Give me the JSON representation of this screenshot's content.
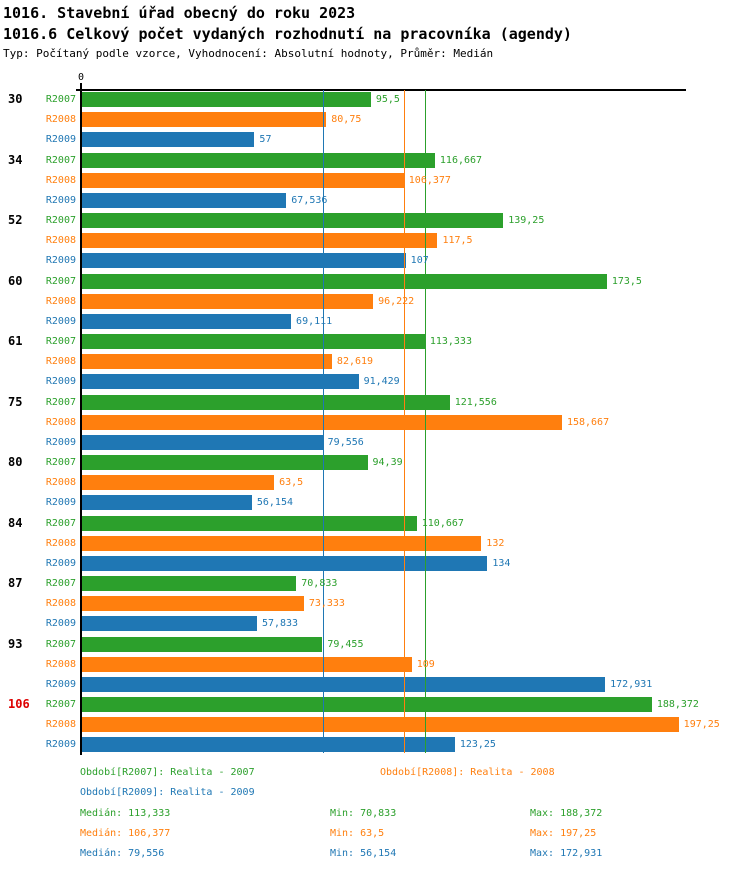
{
  "header": {
    "title": "1016. Stavební úřad obecný do roku 2023",
    "subtitle": "1016.6 Celkový počet vydaných rozhodnutí na pracovníka (agendy)",
    "meta": "Typ: Počítaný podle vzorce, Vyhodnocení: Absolutní hodnoty, Průměr: Medián"
  },
  "colors": {
    "r2007": "#2ca02c",
    "r2008": "#ff7f0e",
    "r2009": "#1f77b4",
    "highlight_label": "#dd0000",
    "axis": "#000000"
  },
  "axis": {
    "origin_label": "0",
    "xmin": 0,
    "xmax": 200
  },
  "chart_data": {
    "type": "bar",
    "orientation": "horizontal",
    "title": "1016.6 Celkový počet vydaných rozhodnutí na pracovníka (agendy)",
    "xlim": [
      0,
      200
    ],
    "grid": false,
    "series_labels": [
      "R2007",
      "R2008",
      "R2009"
    ],
    "groups": [
      {
        "label": "30",
        "highlight": false,
        "values": [
          95.5,
          80.75,
          57
        ],
        "display": [
          "95,5",
          "80,75",
          "57"
        ]
      },
      {
        "label": "34",
        "highlight": false,
        "values": [
          116.667,
          106.377,
          67.536
        ],
        "display": [
          "116,667",
          "106,377",
          "67,536"
        ]
      },
      {
        "label": "52",
        "highlight": false,
        "values": [
          139.25,
          117.5,
          107
        ],
        "display": [
          "139,25",
          "117,5",
          "107"
        ]
      },
      {
        "label": "60",
        "highlight": false,
        "values": [
          173.5,
          96.222,
          69.111
        ],
        "display": [
          "173,5",
          "96,222",
          "69,111"
        ]
      },
      {
        "label": "61",
        "highlight": false,
        "values": [
          113.333,
          82.619,
          91.429
        ],
        "display": [
          "113,333",
          "82,619",
          "91,429"
        ]
      },
      {
        "label": "75",
        "highlight": false,
        "values": [
          121.556,
          158.667,
          79.556
        ],
        "display": [
          "121,556",
          "158,667",
          "79,556"
        ]
      },
      {
        "label": "80",
        "highlight": false,
        "values": [
          94.39,
          63.5,
          56.154
        ],
        "display": [
          "94,39",
          "63,5",
          "56,154"
        ]
      },
      {
        "label": "84",
        "highlight": false,
        "values": [
          110.667,
          132,
          134
        ],
        "display": [
          "110,667",
          "132",
          "134"
        ]
      },
      {
        "label": "87",
        "highlight": false,
        "values": [
          70.833,
          73.333,
          57.833
        ],
        "display": [
          "70,833",
          "73,333",
          "57,833"
        ]
      },
      {
        "label": "93",
        "highlight": false,
        "values": [
          79.455,
          109,
          172.931
        ],
        "display": [
          "79,455",
          "109",
          "172,931"
        ]
      },
      {
        "label": "106",
        "highlight": true,
        "values": [
          188.372,
          197.25,
          123.25
        ],
        "display": [
          "188,372",
          "197,25",
          "123,25"
        ]
      }
    ],
    "median_lines": [
      {
        "series": "R2007",
        "value": 113.333
      },
      {
        "series": "R2008",
        "value": 106.377
      },
      {
        "series": "R2009",
        "value": 79.556
      }
    ]
  },
  "legend": {
    "r2007": "Období[R2007]: Realita - 2007",
    "r2008": "Období[R2008]: Realita - 2008",
    "r2009": "Období[R2009]: Realita - 2009"
  },
  "stats": [
    {
      "median": "Medián: 113,333",
      "min": "Min: 70,833",
      "max": "Max: 188,372"
    },
    {
      "median": "Medián: 106,377",
      "min": "Min: 63,5",
      "max": "Max: 197,25"
    },
    {
      "median": "Medián: 79,556",
      "min": "Min: 56,154",
      "max": "Max: 172,931"
    }
  ]
}
